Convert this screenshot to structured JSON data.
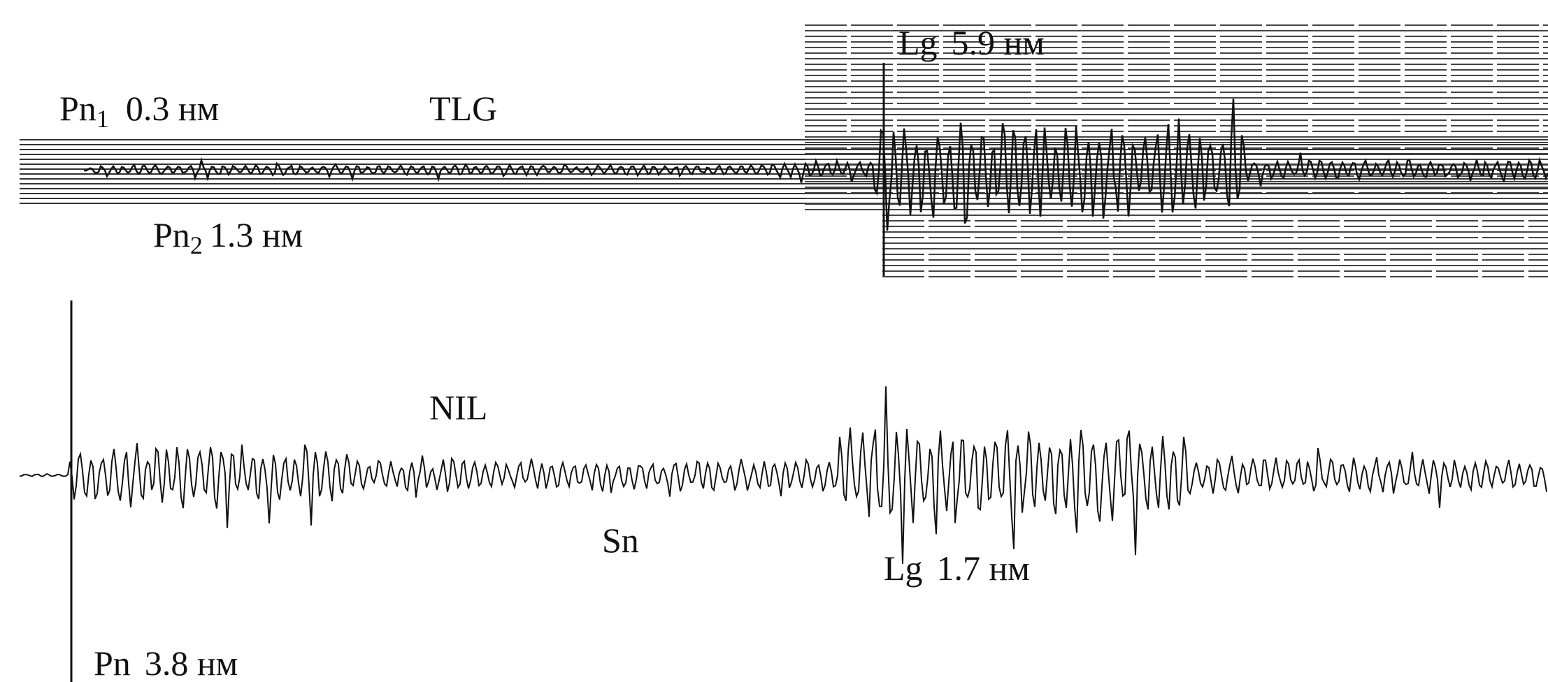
{
  "labels": {
    "pn1": {
      "phase": "Pn",
      "sub": "1",
      "amplitude": "0.3 нм"
    },
    "tlg": {
      "station": "TLG"
    },
    "lg_top": {
      "phase": "Lg",
      "amplitude": "5.9 нм"
    },
    "pn2": {
      "phase": "Pn",
      "sub": "2",
      "amplitude": "1.3 нм"
    },
    "nil": {
      "station": "NIL"
    },
    "sn": {
      "phase": "Sn"
    },
    "lg_bottom": {
      "phase": "Lg",
      "amplitude": "1.7 нм"
    },
    "pn": {
      "phase": "Pn",
      "amplitude": "3.8 нм"
    }
  }
}
